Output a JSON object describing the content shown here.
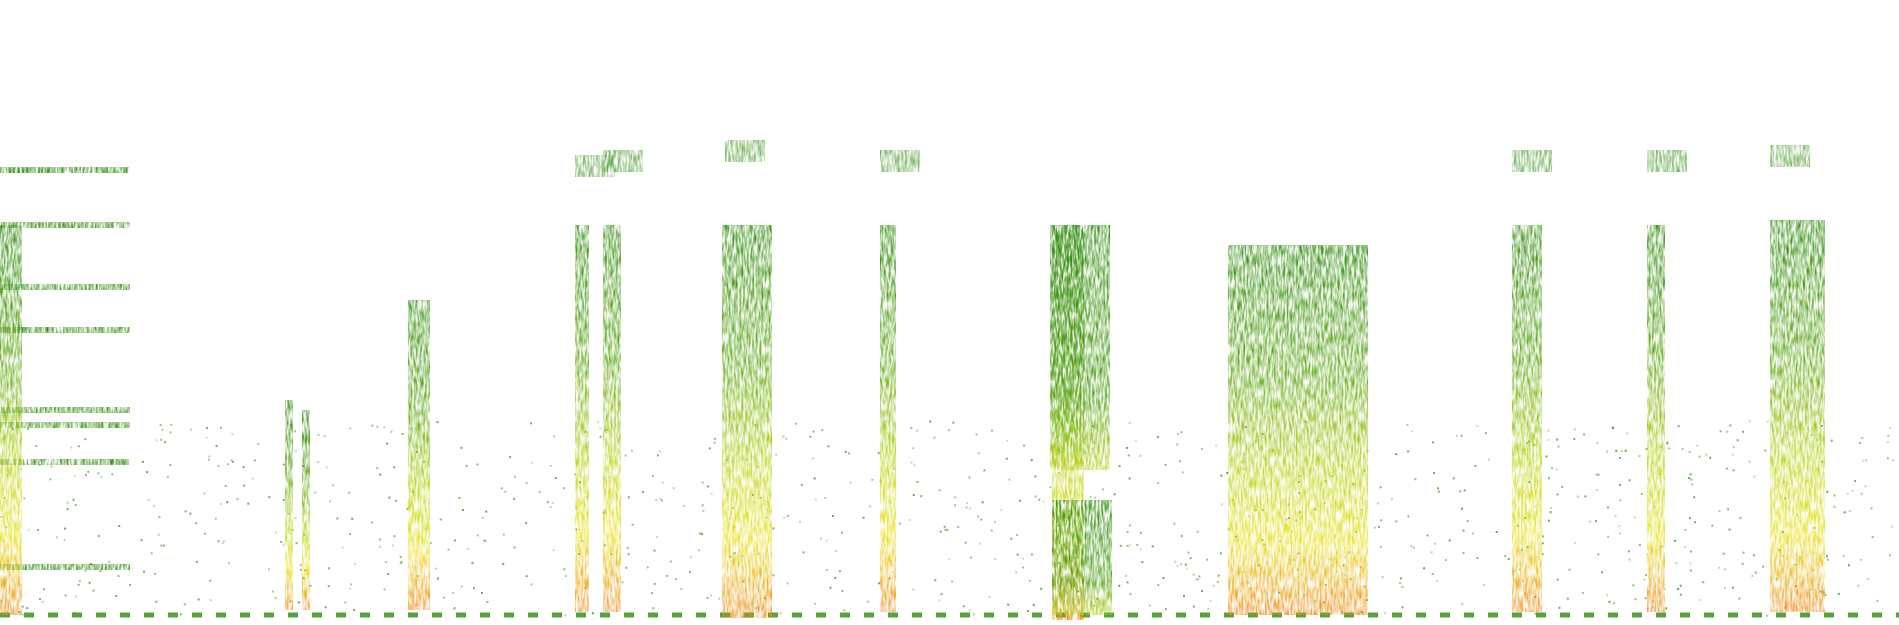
{
  "palette": {
    "background": "#ffffff",
    "low": "#2e8b0e",
    "mid": "#9acd16",
    "high": "#f0e81c",
    "peak": "#f06a1a"
  },
  "icons": []
}
